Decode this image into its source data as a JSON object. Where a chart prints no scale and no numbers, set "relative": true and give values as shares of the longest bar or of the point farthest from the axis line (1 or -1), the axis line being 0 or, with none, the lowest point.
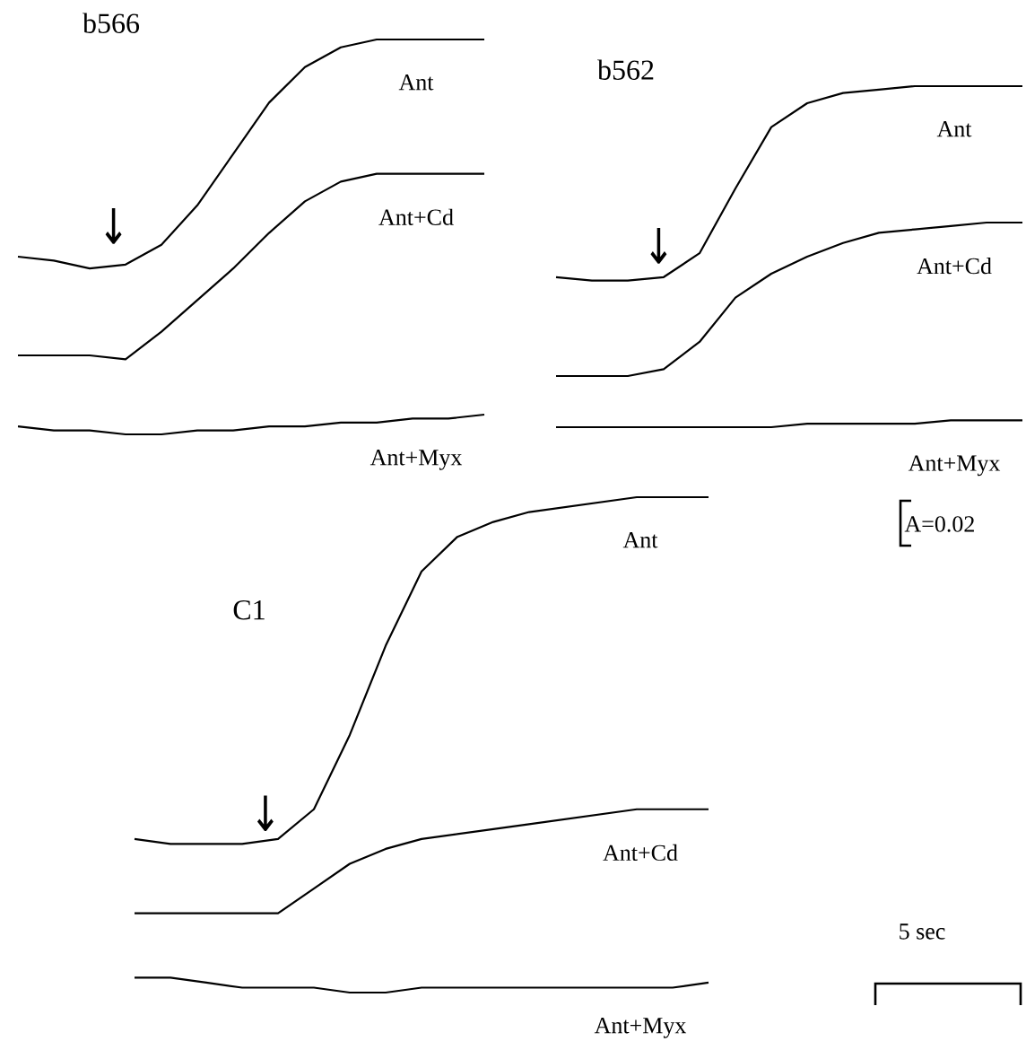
{
  "chart_data": [
    {
      "type": "line",
      "title": "b566",
      "relative": true,
      "legend": false,
      "tick_labels": false,
      "annotations": [
        "↓"
      ],
      "categories": [
        null,
        null,
        null,
        null,
        null,
        null,
        null,
        null,
        null,
        null,
        null,
        null,
        null,
        null
      ],
      "series": [
        {
          "name": "Ant",
          "color": "#000000",
          "values": [
            0.45,
            0.44,
            0.42,
            0.43,
            0.48,
            0.58,
            0.71,
            0.84,
            0.93,
            0.98,
            1,
            1,
            1,
            1
          ]
        },
        {
          "name": "Ant+Cd",
          "color": "#000000",
          "values": [
            0.2,
            0.2,
            0.2,
            0.19,
            0.26,
            0.34,
            0.42,
            0.51,
            0.59,
            0.64,
            0.66,
            0.66,
            0.66,
            0.66
          ]
        },
        {
          "name": "Ant+Myx",
          "color": "#000000",
          "values": [
            0.02,
            0.01,
            0.01,
            0,
            0,
            0.01,
            0.01,
            0.02,
            0.02,
            0.03,
            0.03,
            0.04,
            0.04,
            0.05
          ]
        }
      ]
    },
    {
      "type": "line",
      "title": "b562",
      "relative": true,
      "legend": false,
      "tick_labels": false,
      "annotations": [
        "↓"
      ],
      "categories": [
        null,
        null,
        null,
        null,
        null,
        null,
        null,
        null,
        null,
        null,
        null,
        null,
        null,
        null
      ],
      "series": [
        {
          "name": "Ant",
          "color": "#000000",
          "values": [
            0.44,
            0.43,
            0.43,
            0.44,
            0.51,
            0.7,
            0.88,
            0.95,
            0.98,
            0.99,
            1,
            1,
            1,
            1
          ]
        },
        {
          "name": "Ant+Cd",
          "color": "#000000",
          "values": [
            0.15,
            0.15,
            0.15,
            0.17,
            0.25,
            0.38,
            0.45,
            0.5,
            0.54,
            0.57,
            0.58,
            0.59,
            0.6,
            0.6
          ]
        },
        {
          "name": "Ant+Myx",
          "color": "#000000",
          "values": [
            0,
            0,
            0,
            0,
            0,
            0,
            0,
            0.01,
            0.01,
            0.01,
            0.01,
            0.02,
            0.02,
            0.02
          ]
        }
      ]
    },
    {
      "type": "line",
      "title": "C1",
      "relative": true,
      "legend": false,
      "tick_labels": false,
      "annotations": [
        "↓",
        "A=0.02",
        "5 sec"
      ],
      "categories": [
        null,
        null,
        null,
        null,
        null,
        null,
        null,
        null,
        null,
        null,
        null,
        null,
        null,
        null,
        null,
        null,
        null
      ],
      "series": [
        {
          "name": "Ant",
          "color": "#000000",
          "values": [
            0.31,
            0.3,
            0.3,
            0.3,
            0.31,
            0.37,
            0.52,
            0.7,
            0.85,
            0.92,
            0.95,
            0.97,
            0.98,
            0.99,
            1,
            1,
            1
          ]
        },
        {
          "name": "Ant+Cd",
          "color": "#000000",
          "values": [
            0.16,
            0.16,
            0.16,
            0.16,
            0.16,
            0.21,
            0.26,
            0.29,
            0.31,
            0.32,
            0.33,
            0.34,
            0.35,
            0.36,
            0.37,
            0.37,
            0.37
          ]
        },
        {
          "name": "Ant+Myx",
          "color": "#000000",
          "values": [
            0.03,
            0.03,
            0.02,
            0.01,
            0.01,
            0.01,
            0,
            0,
            0.01,
            0.01,
            0.01,
            0.01,
            0.01,
            0.01,
            0.01,
            0.01,
            0.02
          ]
        }
      ]
    }
  ]
}
